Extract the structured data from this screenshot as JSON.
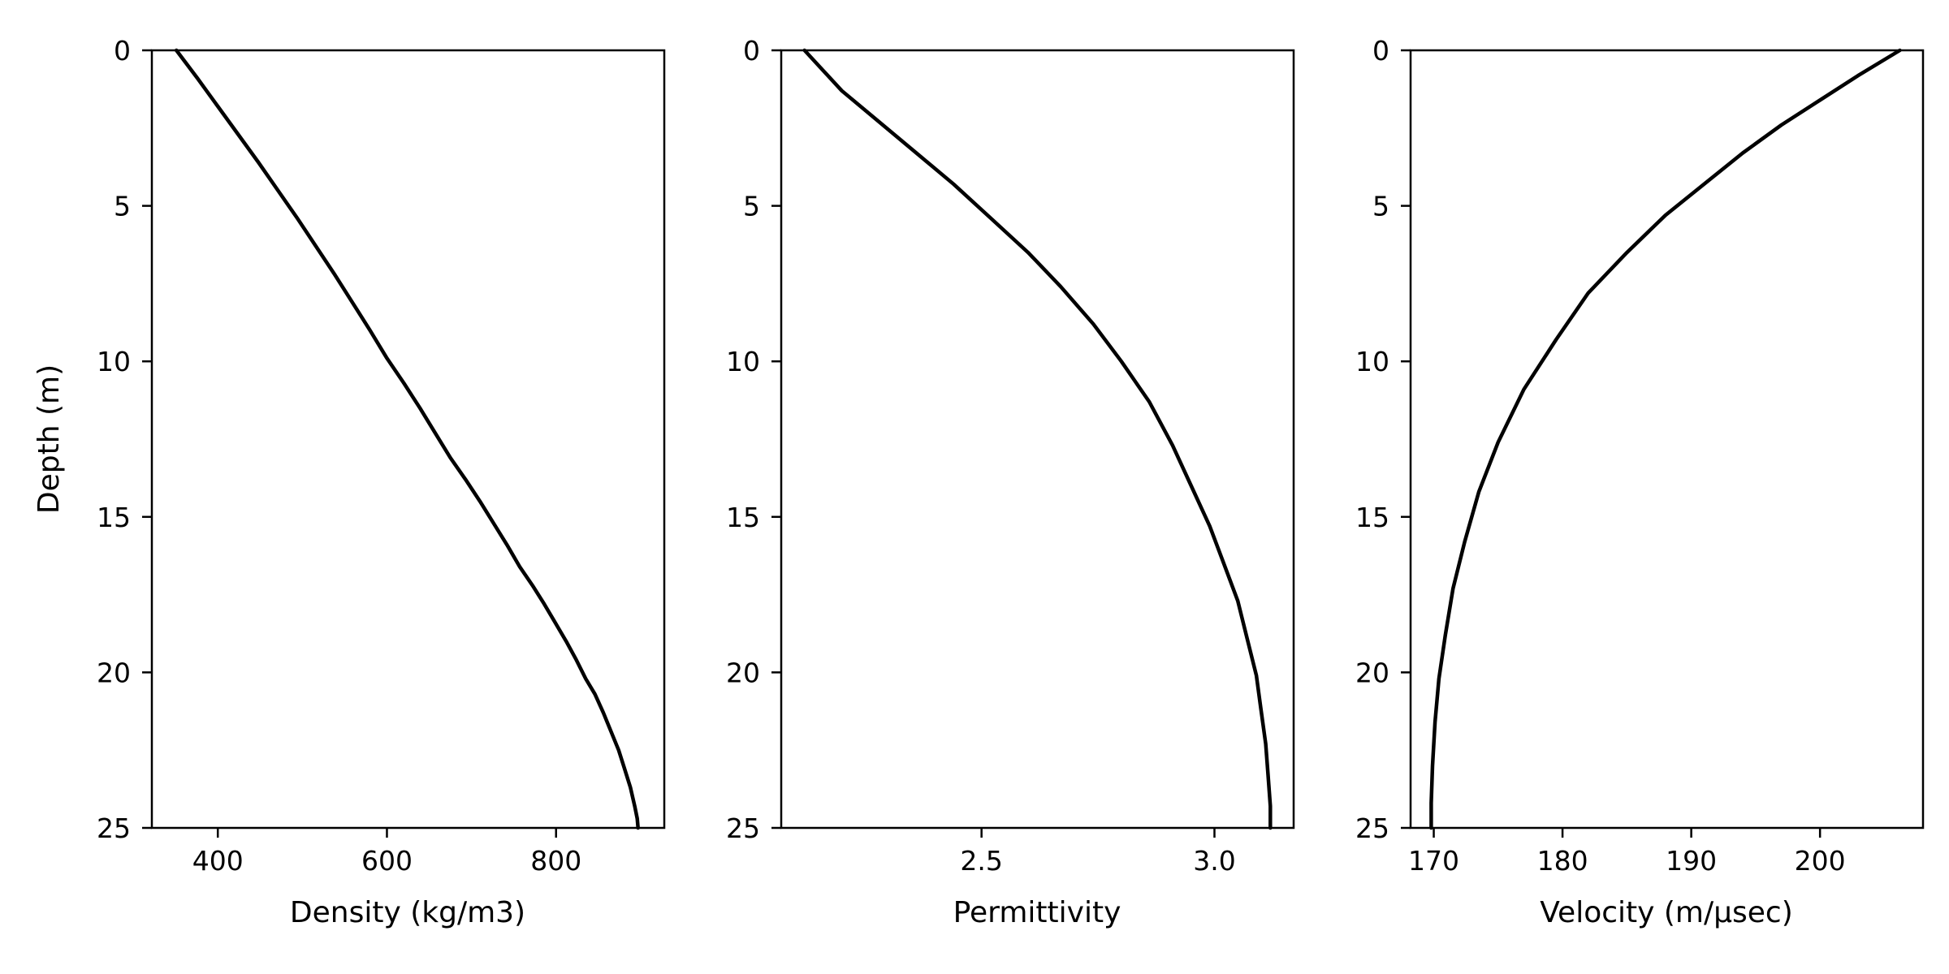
{
  "figure": {
    "background": "#ffffff",
    "line_color": "#000000"
  },
  "chart_data": [
    {
      "type": "line",
      "xlabel": "Density (kg/m3)",
      "ylabel": "Depth (m)",
      "xlim": [
        322,
        928
      ],
      "ylim": [
        25,
        0
      ],
      "x_ticks": [
        400,
        600,
        800
      ],
      "y_ticks": [
        0,
        5,
        10,
        15,
        20,
        25
      ],
      "grid": false,
      "series": [
        {
          "x": [
            351,
            376,
            400,
            424,
            448,
            471,
            494,
            516,
            538,
            559,
            580,
            600,
            620,
            639,
            657,
            675,
            693,
            710,
            726,
            742,
            757,
            772,
            786,
            799,
            812,
            824,
            835,
            846,
            856,
            865,
            874,
            881,
            888,
            893,
            896,
            897
          ],
          "y": [
            0,
            0.9,
            1.8,
            2.7,
            3.6,
            4.5,
            5.4,
            6.3,
            7.2,
            8.1,
            9.0,
            9.9,
            10.7,
            11.5,
            12.3,
            13.1,
            13.8,
            14.5,
            15.2,
            15.9,
            16.6,
            17.2,
            17.8,
            18.4,
            19.0,
            19.6,
            20.2,
            20.7,
            21.3,
            21.9,
            22.5,
            23.1,
            23.7,
            24.3,
            24.7,
            25.0
          ]
        }
      ]
    },
    {
      "type": "line",
      "xlabel": "Permittivity",
      "ylabel": "",
      "xlim": [
        2.07,
        3.17
      ],
      "ylim": [
        25,
        0
      ],
      "x_ticks": [
        2.5,
        3.0
      ],
      "x_tick_labels": [
        "2.5",
        "3.0"
      ],
      "y_ticks": [
        0,
        5,
        10,
        15,
        20,
        25
      ],
      "grid": false,
      "series": [
        {
          "x": [
            2.12,
            2.2,
            2.28,
            2.36,
            2.44,
            2.52,
            2.6,
            2.67,
            2.74,
            2.8,
            2.86,
            2.91,
            2.95,
            2.99,
            3.02,
            3.05,
            3.07,
            3.09,
            3.1,
            3.11,
            3.115,
            3.12,
            3.12
          ],
          "y": [
            0,
            1.3,
            2.3,
            3.3,
            4.3,
            5.4,
            6.5,
            7.6,
            8.8,
            10.0,
            11.3,
            12.7,
            14.0,
            15.3,
            16.5,
            17.7,
            18.9,
            20.1,
            21.2,
            22.3,
            23.3,
            24.3,
            25.0
          ]
        }
      ]
    },
    {
      "type": "line",
      "xlabel": "Velocity (m/μsec)",
      "ylabel": "",
      "xlim": [
        168.2,
        208.0
      ],
      "ylim": [
        25,
        0
      ],
      "x_ticks": [
        170,
        180,
        190,
        200
      ],
      "y_ticks": [
        0,
        5,
        10,
        15,
        20,
        25
      ],
      "grid": false,
      "series": [
        {
          "x": [
            206.2,
            203.0,
            200.0,
            197.0,
            194.0,
            191.0,
            188.0,
            185.0,
            182.0,
            179.5,
            177.0,
            175.0,
            173.5,
            172.4,
            171.5,
            170.9,
            170.4,
            170.1,
            169.9,
            169.8,
            169.8
          ],
          "y": [
            0,
            0.8,
            1.6,
            2.4,
            3.3,
            4.3,
            5.3,
            6.5,
            7.8,
            9.3,
            10.9,
            12.6,
            14.2,
            15.8,
            17.3,
            18.8,
            20.2,
            21.6,
            23.0,
            24.2,
            25.0
          ]
        }
      ]
    }
  ]
}
